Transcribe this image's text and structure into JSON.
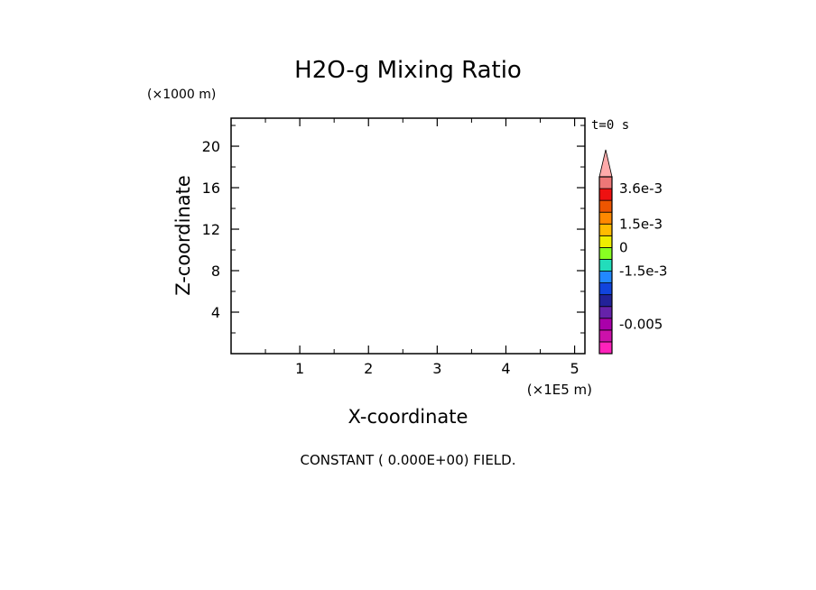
{
  "chart_data": {
    "type": "heatmap",
    "title": "H2O-g Mixing Ratio",
    "xlabel": "X-coordinate",
    "ylabel": "Z-coordinate",
    "x_unit": "(×1E5 m)",
    "y_unit": "(×1000 m)",
    "time_label": "t=0 s",
    "note": "CONSTANT ( 0.000E+00) FIELD.",
    "xlim": [
      0,
      5.15
    ],
    "ylim": [
      0,
      22.7
    ],
    "x_ticks": [
      "1",
      "2",
      "3",
      "4",
      "5"
    ],
    "y_ticks": [
      "4",
      "8",
      "12",
      "16",
      "20"
    ],
    "colorbar": {
      "colors_bottom_to_top": [
        "#ff22bb",
        "#cc11aa",
        "#aa00aa",
        "#6622aa",
        "#222299",
        "#1144dd",
        "#2288ff",
        "#22ddbb",
        "#88ff22",
        "#eeee00",
        "#ffbb00",
        "#ff8800",
        "#ee5500",
        "#ee1111",
        "#ee7777"
      ],
      "extend_color": "#ffaaaa",
      "labels": [
        {
          "text": "3.6e-3",
          "value": 0.0036
        },
        {
          "text": "1.5e-3",
          "value": 0.0015
        },
        {
          "text": "0",
          "value": 0
        },
        {
          "text": "-1.5e-3",
          "value": -0.0015
        },
        {
          "text": "-0.005",
          "value": -0.005
        }
      ]
    }
  }
}
